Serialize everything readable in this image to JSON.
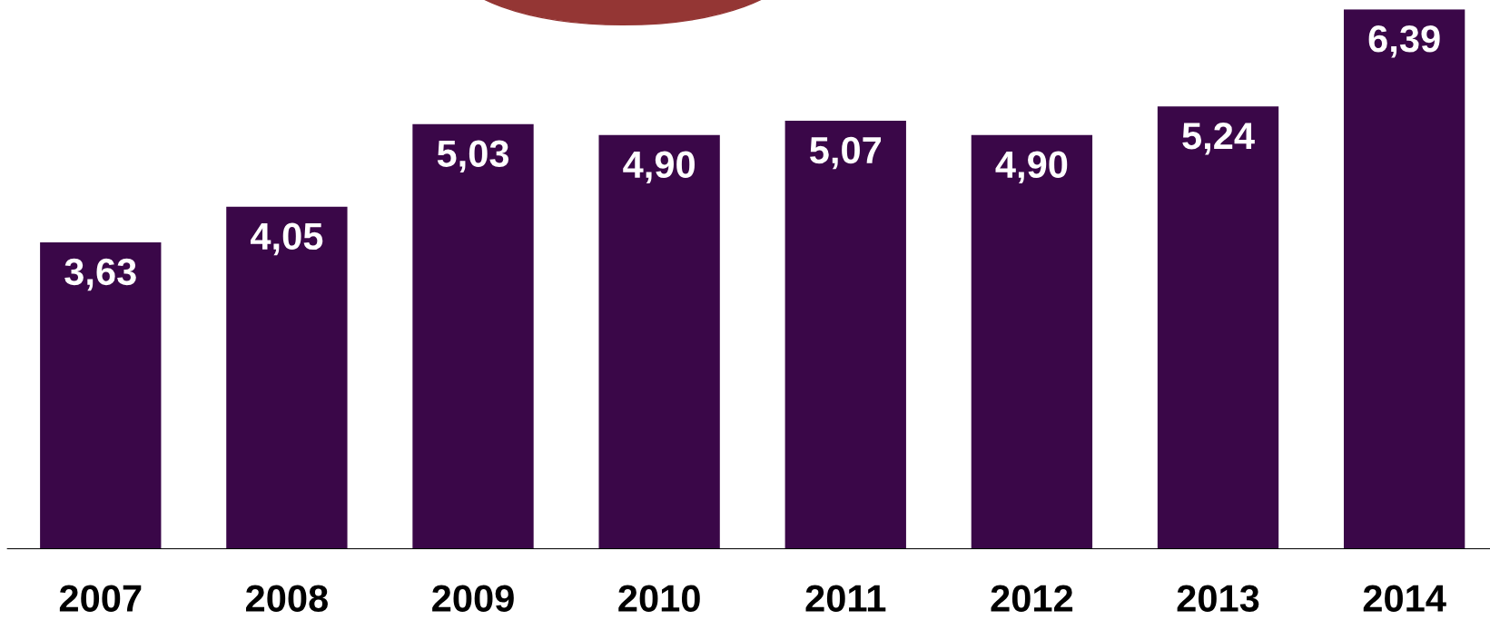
{
  "chart_data": {
    "type": "bar",
    "categories": [
      "2007",
      "2008",
      "2009",
      "2010",
      "2011",
      "2012",
      "2013",
      "2014"
    ],
    "values": [
      3.63,
      4.05,
      5.03,
      4.9,
      5.07,
      4.9,
      5.24,
      6.39
    ],
    "value_labels": [
      "3,63",
      "4,05",
      "5,03",
      "4,90",
      "5,07",
      "4,90",
      "5,24",
      "6,39"
    ],
    "color": "#3a0748",
    "grid": false,
    "legend": false,
    "tick_labels": "x"
  }
}
